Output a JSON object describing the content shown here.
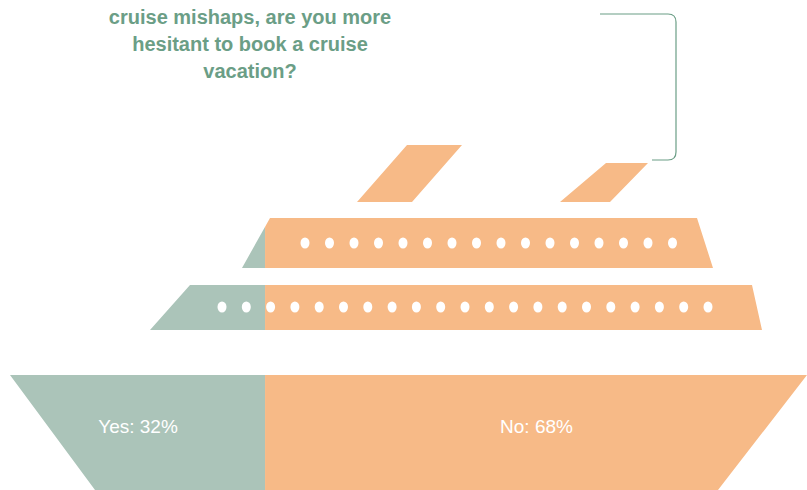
{
  "chart_data": {
    "type": "bar",
    "orientation": "horizontal",
    "stacked": true,
    "title": "cruise mishaps, are you more hesitant to book a cruise vacation?",
    "categories": [
      "Yes",
      "No"
    ],
    "values": [
      32,
      68
    ],
    "value_labels": [
      "Yes: 32%",
      "No: 68%"
    ],
    "colors": [
      "#abc4b9",
      "#f7ba87"
    ],
    "data_labels": true,
    "tick_labels": false
  }
}
